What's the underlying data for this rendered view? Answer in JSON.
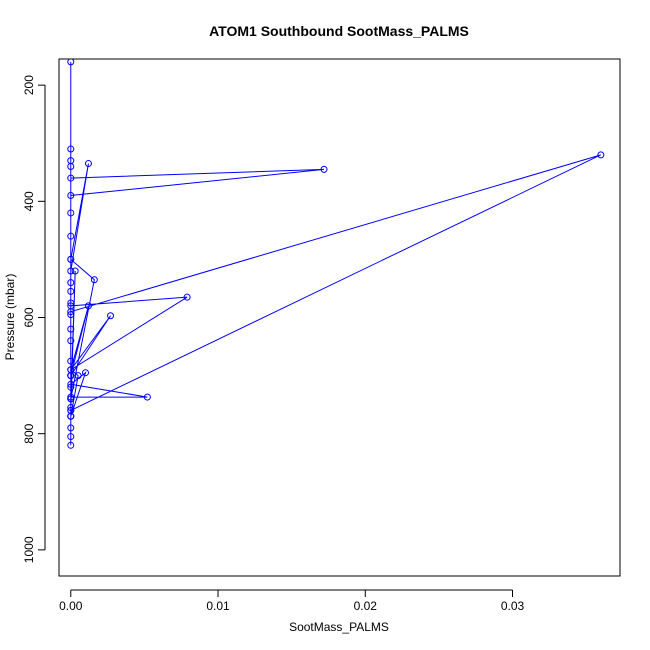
{
  "chart_data": {
    "type": "line",
    "title": "ATOM1 Southbound SootMass_PALMS",
    "xlabel": "SootMass_PALMS",
    "ylabel": "Pressure (mbar)",
    "xlim": [
      -0.0008,
      0.0373
    ],
    "ylim": [
      1045,
      155
    ],
    "y_reversed": true,
    "x_ticks": [
      0.0,
      0.01,
      0.02,
      0.03
    ],
    "x_tick_labels": [
      "0.00",
      "0.01",
      "0.02",
      "0.03"
    ],
    "y_ticks": [
      200,
      400,
      600,
      800,
      1000
    ],
    "y_tick_labels": [
      "200",
      "400",
      "600",
      "800",
      "1000"
    ],
    "grid": false,
    "legend": "none",
    "series": [
      {
        "color": "#0000ff",
        "marker": "open-circle",
        "x": [
          0,
          0,
          0,
          0,
          0,
          0,
          0,
          0,
          0,
          0,
          0,
          0,
          0,
          0,
          0,
          0,
          0.0012,
          0,
          0,
          0,
          0,
          0.0172,
          0,
          0,
          0.0003,
          0,
          0.0016,
          0,
          0,
          0,
          0.036,
          0,
          0,
          0,
          0.0079,
          0,
          0.0012,
          0,
          0.0027,
          0,
          0.0005,
          0,
          0.001,
          0,
          0.0052,
          0,
          0,
          0,
          0,
          0,
          0
        ],
        "y": [
          820,
          805,
          790,
          770,
          755,
          740,
          720,
          700,
          675,
          640,
          620,
          595,
          575,
          555,
          540,
          520,
          335,
          500,
          460,
          420,
          390,
          345,
          360,
          760,
          520,
          740,
          535,
          500,
          340,
          590,
          320,
          760,
          700,
          580,
          565,
          690,
          580,
          700,
          597,
          690,
          700,
          770,
          695,
          715,
          737,
          737,
          740,
          770,
          330,
          310,
          160
        ]
      }
    ]
  }
}
